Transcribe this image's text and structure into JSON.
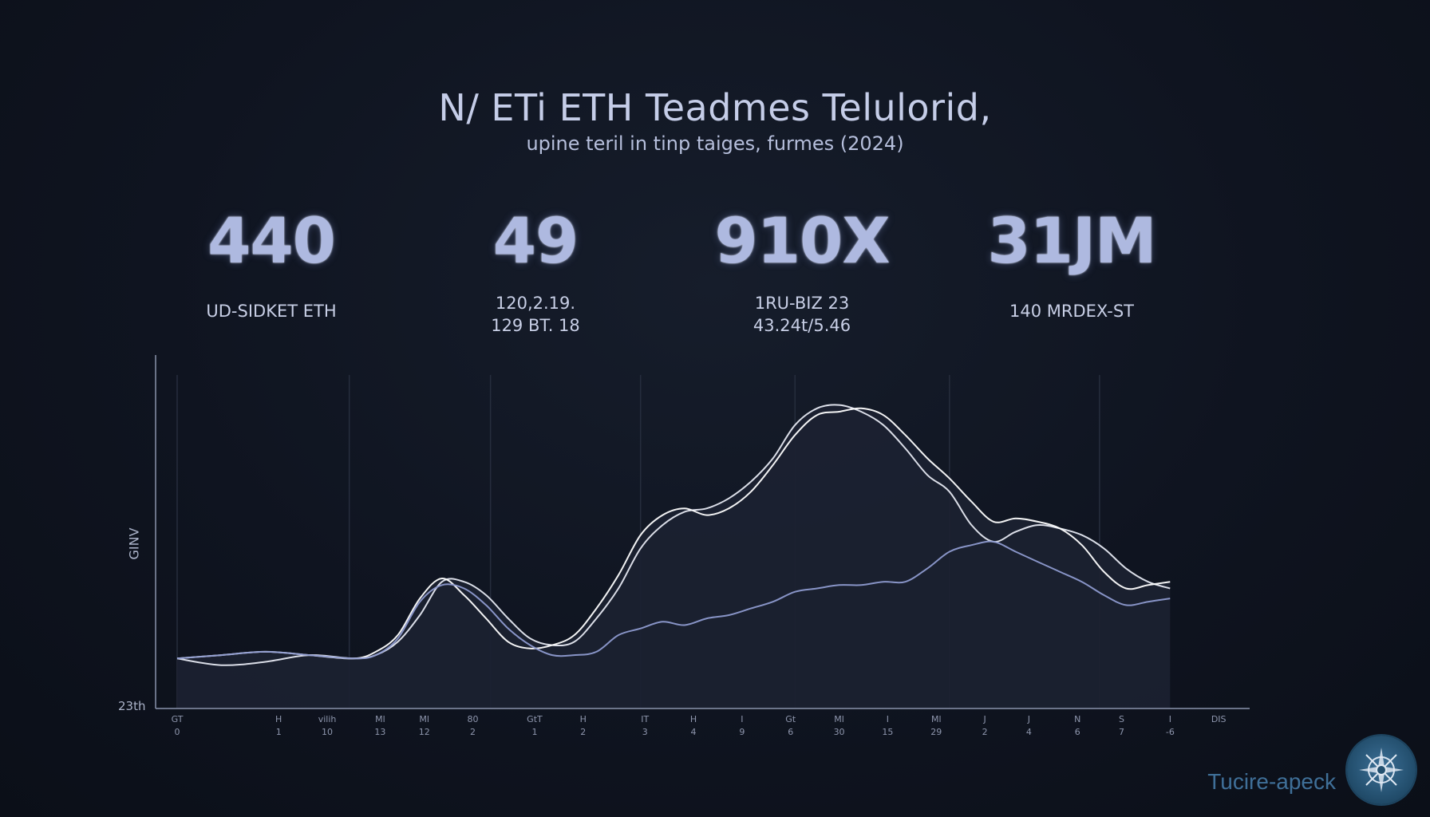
{
  "header": {
    "title": "N/ ETi ETH Teadmes Telulorid,",
    "subtitle": "upine teril in tinp taiges, furmes (2024)"
  },
  "kpis": [
    {
      "value": "440",
      "label": "UD-SIDKET ETH"
    },
    {
      "value": "49",
      "label": "120,2.19.\n129 BT. 18"
    },
    {
      "value": "910X",
      "label": "1RU-BIZ 23\n43.24t/5.46"
    },
    {
      "value": "31JM",
      "label": "140 MRDEX-ST"
    }
  ],
  "brand": {
    "text": "Tucire-apeck",
    "logo_icon": "compass-logo-icon"
  },
  "chart_data": {
    "type": "line",
    "ylabel": "GINV",
    "y_min_label": "23th",
    "xlim": [
      0,
      23
    ],
    "ylim": [
      0,
      100
    ],
    "grid": "vertical",
    "x_tick_labels": [
      {
        "x": 0,
        "top": "GT",
        "bottom": "0"
      },
      {
        "x": 2.3,
        "top": "H",
        "bottom": "1"
      },
      {
        "x": 3.4,
        "top": "vilih",
        "bottom": "10"
      },
      {
        "x": 4.6,
        "top": "Ml",
        "bottom": "13"
      },
      {
        "x": 5.6,
        "top": "Ml",
        "bottom": "12"
      },
      {
        "x": 6.7,
        "top": "80",
        "bottom": "2"
      },
      {
        "x": 8.1,
        "top": "GtT",
        "bottom": "1"
      },
      {
        "x": 9.2,
        "top": "H",
        "bottom": "2"
      },
      {
        "x": 10.6,
        "top": "IT",
        "bottom": "3"
      },
      {
        "x": 11.7,
        "top": "H",
        "bottom": "4"
      },
      {
        "x": 12.8,
        "top": "I",
        "bottom": "9"
      },
      {
        "x": 13.9,
        "top": "Gt",
        "bottom": "6"
      },
      {
        "x": 15,
        "top": "Ml",
        "bottom": "30"
      },
      {
        "x": 16.1,
        "top": "I",
        "bottom": "15"
      },
      {
        "x": 17.2,
        "top": "Ml",
        "bottom": "29"
      },
      {
        "x": 18.3,
        "top": "J",
        "bottom": "2"
      },
      {
        "x": 19.3,
        "top": "J",
        "bottom": "4"
      },
      {
        "x": 20.4,
        "top": "N",
        "bottom": "6"
      },
      {
        "x": 21.4,
        "top": "S",
        "bottom": "7"
      },
      {
        "x": 22.5,
        "top": "I",
        "bottom": "-6"
      },
      {
        "x": 23.6,
        "top": "DIS",
        "bottom": ""
      }
    ],
    "series": [
      {
        "color": "#e6e9f2",
        "x": [
          0,
          1,
          2,
          3,
          4,
          4.5,
          5,
          5.5,
          6,
          6.5,
          7,
          7.5,
          8,
          8.5,
          9,
          9.5,
          10,
          10.5,
          11,
          11.5,
          12,
          12.5,
          13,
          13.5,
          14,
          14.5,
          15,
          15.5,
          16,
          16.5,
          17,
          17.5,
          18,
          18.5,
          19,
          19.5,
          20,
          20.5,
          21,
          21.5,
          22,
          22.5
        ],
        "y": [
          15,
          13,
          14,
          16,
          15,
          16,
          20,
          28,
          38,
          38,
          34,
          27,
          21,
          19,
          20,
          27,
          36,
          48,
          55,
          59,
          60,
          63,
          68,
          75,
          85,
          90,
          91,
          89,
          85,
          78,
          70,
          65,
          55,
          50,
          53,
          55,
          54,
          52,
          48,
          42,
          38,
          36
        ]
      },
      {
        "color": "#ffffff",
        "x": [
          0,
          1,
          2,
          3,
          4,
          4.5,
          5,
          5.5,
          6,
          6.5,
          7,
          7.5,
          8,
          8.5,
          9,
          9.5,
          10,
          10.5,
          11,
          11.5,
          12,
          12.5,
          13,
          13.5,
          14,
          14.5,
          15,
          15.5,
          16,
          16.5,
          17,
          17.5,
          18,
          18.5,
          19,
          19.5,
          20,
          20.5,
          21,
          21.5,
          22,
          22.5
        ],
        "y": [
          15,
          16,
          17,
          16,
          15,
          17,
          22,
          33,
          39,
          34,
          27,
          20,
          18,
          19,
          22,
          30,
          40,
          52,
          58,
          60,
          58,
          60,
          65,
          73,
          82,
          88,
          89,
          90,
          88,
          82,
          75,
          69,
          62,
          56,
          57,
          56,
          54,
          49,
          41,
          36,
          37,
          38
        ]
      },
      {
        "color": "#8e9bd0",
        "x": [
          0,
          1,
          2,
          3,
          4,
          4.5,
          5,
          5.5,
          6,
          6.5,
          7,
          7.5,
          8,
          8.5,
          9,
          9.5,
          10,
          10.5,
          11,
          11.5,
          12,
          12.5,
          13,
          13.5,
          14,
          14.5,
          15,
          15.5,
          16,
          16.5,
          17,
          17.5,
          18,
          18.5,
          19,
          19.5,
          20,
          20.5,
          21,
          21.5,
          22,
          22.5
        ],
        "y": [
          15,
          16,
          17,
          16,
          15,
          16,
          21,
          32,
          37,
          36,
          31,
          24,
          19,
          16,
          16,
          17,
          22,
          24,
          26,
          25,
          27,
          28,
          30,
          32,
          35,
          36,
          37,
          37,
          38,
          38,
          42,
          47,
          49,
          50,
          47,
          44,
          41,
          38,
          34,
          31,
          32,
          33
        ]
      }
    ],
    "area_fill": "#1b2130"
  }
}
